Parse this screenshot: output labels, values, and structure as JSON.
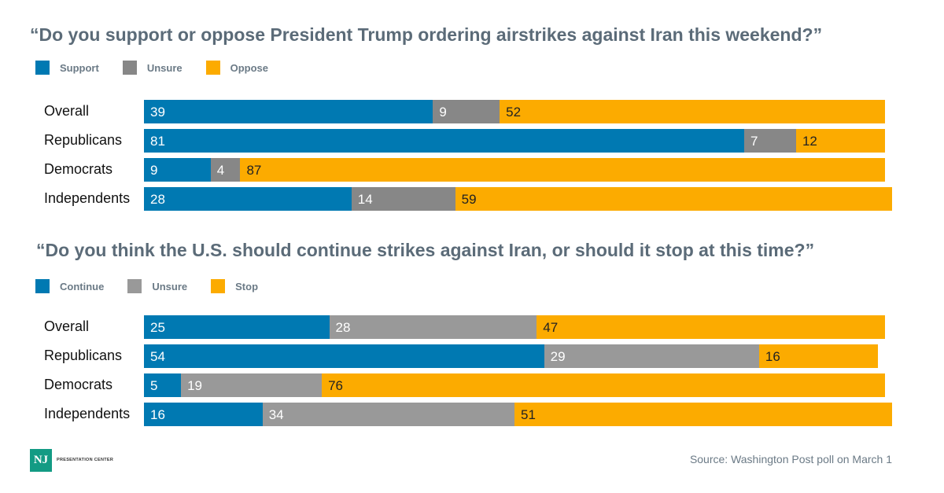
{
  "chart_data": [
    {
      "type": "bar",
      "orientation": "horizontal",
      "stacked": true,
      "title": "“Do you support or oppose President Trump ordering airstrikes against Iran this weekend?”",
      "categories": [
        "Overall",
        "Republicans",
        "Democrats",
        "Independents"
      ],
      "series": [
        {
          "name": "Support",
          "color": "#0079b2",
          "values": [
            39,
            81,
            9,
            28
          ]
        },
        {
          "name": "Unsure",
          "color": "#878787",
          "values": [
            9,
            7,
            4,
            14
          ]
        },
        {
          "name": "Oppose",
          "color": "#fcab00",
          "values": [
            52,
            12,
            87,
            59
          ]
        }
      ],
      "legend": "top-left"
    },
    {
      "type": "bar",
      "orientation": "horizontal",
      "stacked": true,
      "title": "“Do you think the U.S. should continue strikes against Iran, or should it stop at this time?”",
      "categories": [
        "Overall",
        "Republicans",
        "Democrats",
        "Independents"
      ],
      "series": [
        {
          "name": "Continue",
          "color": "#0079b2",
          "values": [
            25,
            54,
            5,
            16
          ]
        },
        {
          "name": "Unsure",
          "color": "#999999",
          "values": [
            28,
            29,
            19,
            34
          ]
        },
        {
          "name": "Stop",
          "color": "#fcab00",
          "values": [
            47,
            16,
            76,
            51
          ]
        }
      ],
      "legend": "top-left"
    }
  ],
  "footer": {
    "source": "Source: Washington Post poll on March 1",
    "logo_mark": "NJ",
    "logo_text": "PRESENTATION CENTER"
  }
}
